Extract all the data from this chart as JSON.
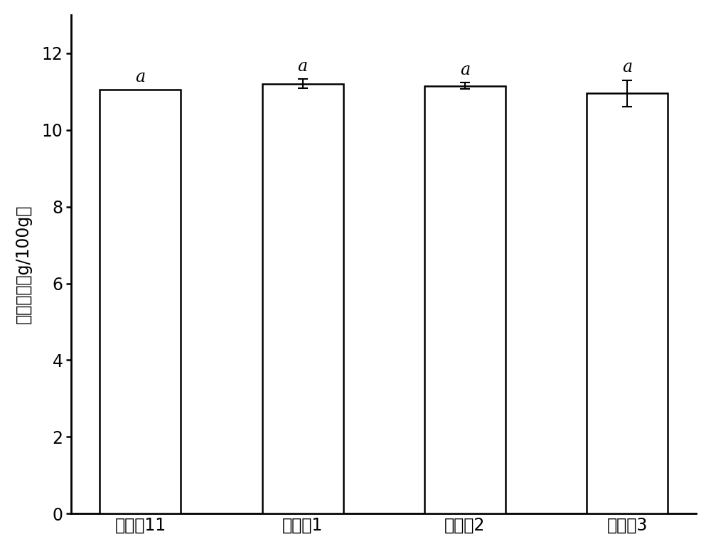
{
  "categories": [
    "实施例11",
    "对比例1",
    "对比例2",
    "对比例3"
  ],
  "values": [
    11.05,
    11.2,
    11.15,
    10.95
  ],
  "errors": [
    0.0,
    0.12,
    0.08,
    0.35
  ],
  "bar_color": "#ffffff",
  "bar_edgecolor": "#000000",
  "bar_width": 0.5,
  "ylabel": "水分含量（g/100g）",
  "ylim": [
    0,
    13
  ],
  "yticks": [
    0,
    2,
    4,
    6,
    8,
    10,
    12
  ],
  "significance_labels": [
    "a",
    "a",
    "a",
    "a"
  ],
  "sig_fontsize": 17,
  "tick_fontsize": 17,
  "ylabel_fontsize": 17,
  "bar_linewidth": 1.8,
  "capsize": 5,
  "error_linewidth": 1.5,
  "background_color": "#ffffff",
  "spine_linewidth": 2.0
}
